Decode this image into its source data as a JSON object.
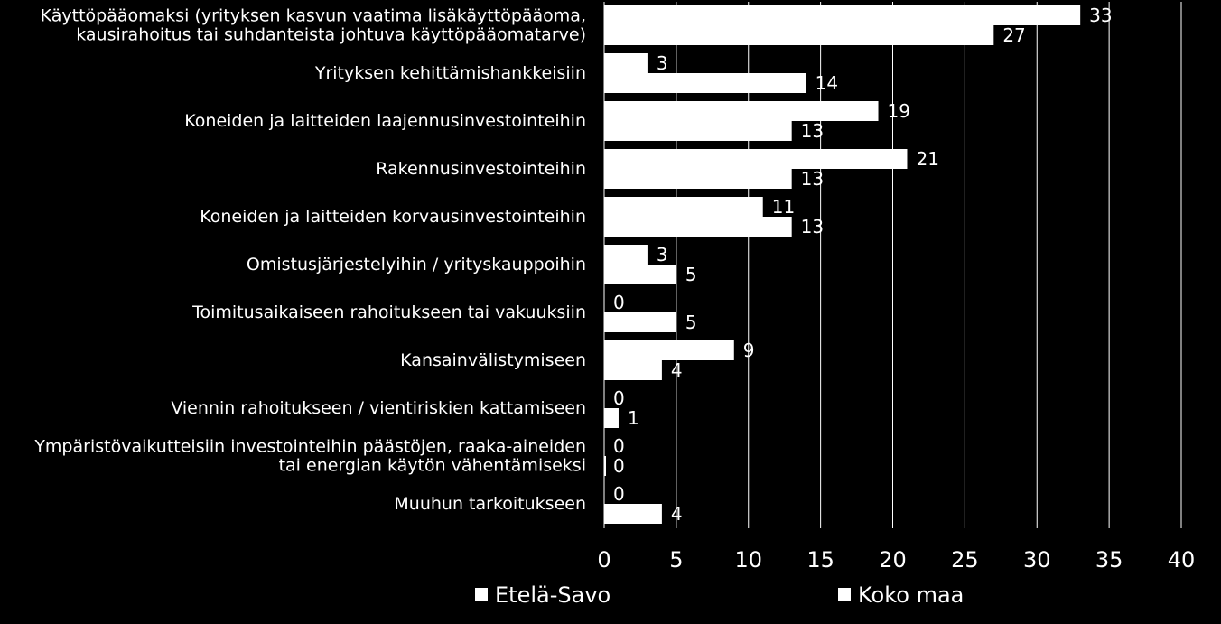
{
  "chart_data": {
    "type": "bar",
    "orientation": "horizontal",
    "categories": [
      [
        "Käyttöpääomaksi (yrityksen kasvun vaatima lisäkäyttöpääoma,",
        "kausirahoitus tai suhdanteista johtuva käyttöpääomatarve)"
      ],
      [
        "Yrityksen kehittämishankkeisiin"
      ],
      [
        "Koneiden ja laitteiden laajennusinvestointeihin"
      ],
      [
        "Rakennusinvestointeihin"
      ],
      [
        "Koneiden ja laitteiden korvausinvestointeihin"
      ],
      [
        "Omistusjärjestelyihin / yrityskauppoihin"
      ],
      [
        "Toimitusaikaiseen rahoitukseen tai vakuuksiin"
      ],
      [
        "Kansainvälistymiseen"
      ],
      [
        "Viennin rahoitukseen / vientiriskien kattamiseen"
      ],
      [
        "Ympäristövaikutteisiin investointeihin päästöjen, raaka-aineiden",
        "tai energian käytön vähentämiseksi"
      ],
      [
        "Muuhun tarkoitukseen"
      ]
    ],
    "series": [
      {
        "name": "Etelä-Savo",
        "values": [
          33,
          3,
          19,
          21,
          11,
          3,
          0,
          9,
          0,
          0,
          0
        ]
      },
      {
        "name": "Koko maa",
        "values": [
          27,
          14,
          13,
          13,
          13,
          5,
          5,
          4,
          1,
          0,
          4
        ]
      }
    ],
    "xlim": [
      0,
      40
    ],
    "xticks": [
      0,
      5,
      10,
      15,
      20,
      25,
      30,
      35,
      40
    ],
    "grid": true,
    "legend_position": "bottom",
    "colors": {
      "background": "#000000",
      "bars": "#ffffff",
      "grid": "#ffffff",
      "text": "#ffffff"
    }
  }
}
